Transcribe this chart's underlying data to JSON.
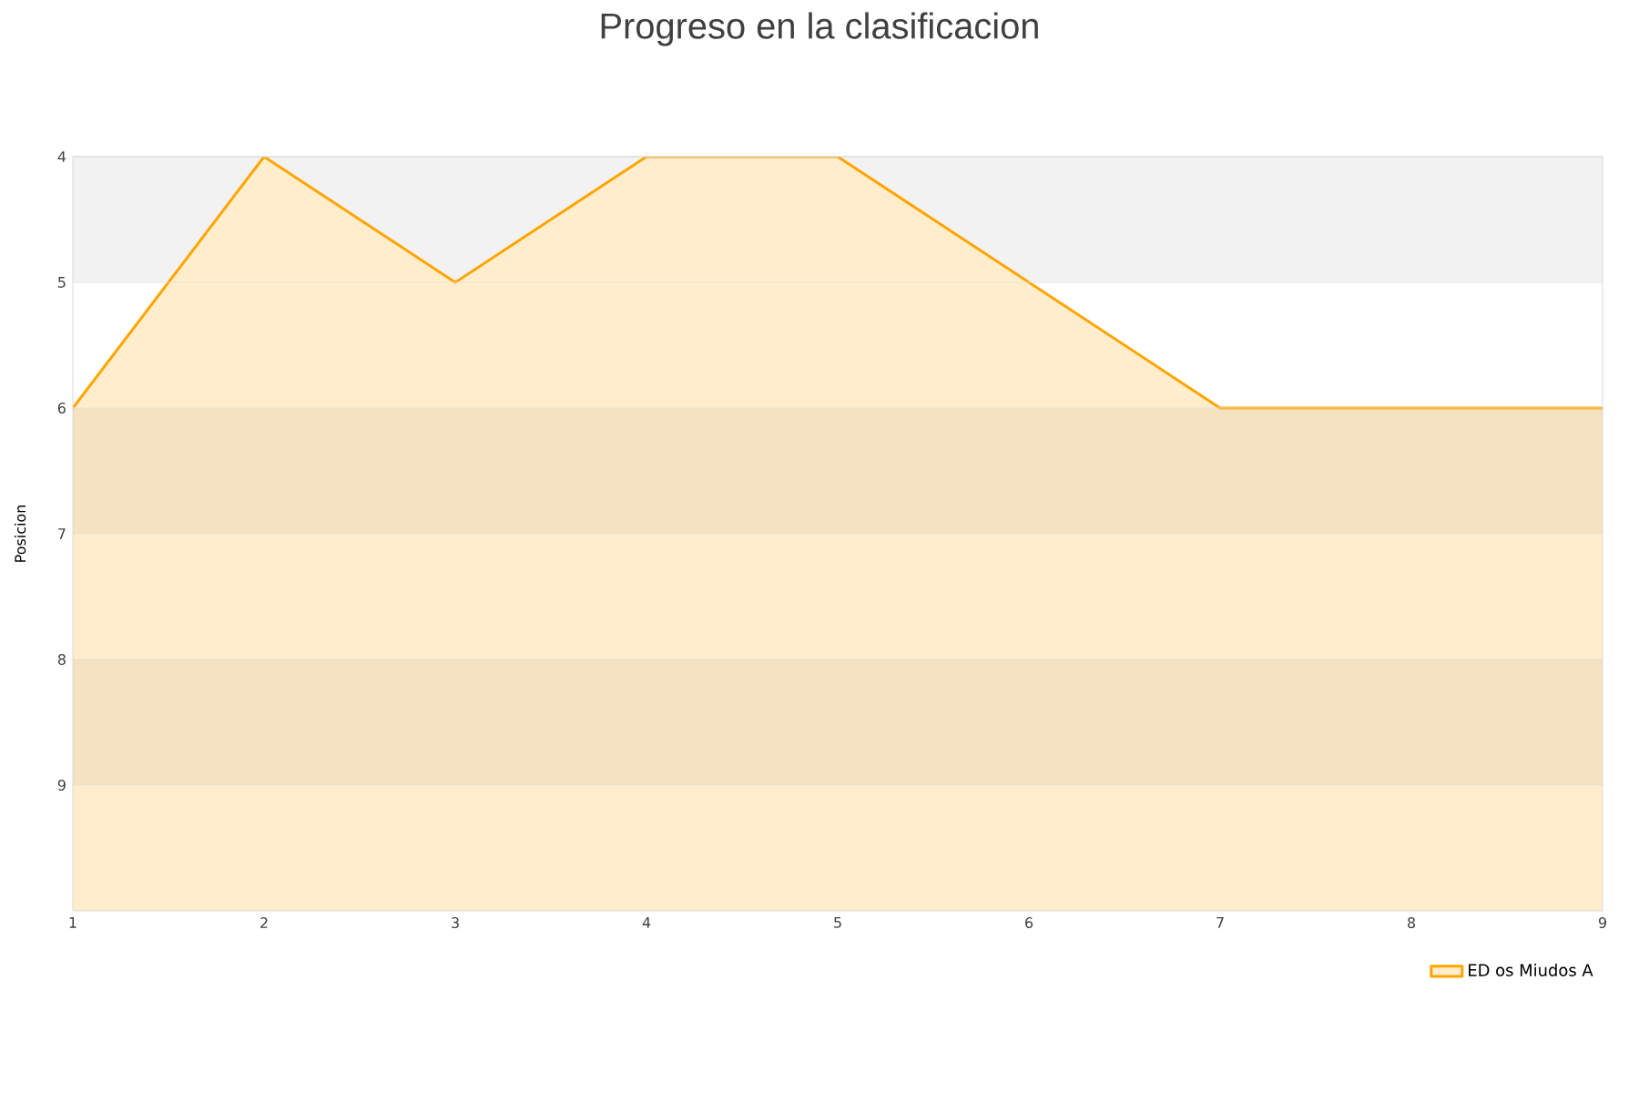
{
  "chart_data": {
    "type": "area",
    "title": "Progreso en la clasificacion",
    "ylabel": "Posicion",
    "x": [
      1,
      2,
      3,
      4,
      5,
      6,
      7,
      8,
      9
    ],
    "series": [
      {
        "name": "ED os Miudos A",
        "color": "#ffa500",
        "values": [
          6,
          4,
          5,
          4,
          4,
          5,
          6,
          6,
          6
        ]
      }
    ],
    "xlim": [
      1,
      9
    ],
    "xticks": [
      1,
      2,
      3,
      4,
      5,
      6,
      7,
      8,
      9
    ],
    "ylim": [
      10,
      4
    ],
    "yticks": [
      4,
      5,
      6,
      7,
      8,
      9
    ],
    "bands": [
      {
        "axis": "y",
        "from": 4,
        "to": 5,
        "color": "#f2f2f2"
      },
      {
        "axis": "y",
        "from": 6,
        "to": 7,
        "color": "#f2f2f2"
      },
      {
        "axis": "y",
        "from": 8,
        "to": 9,
        "color": "#f2f2f2"
      }
    ],
    "grid": "y",
    "legend": "bottom right"
  }
}
